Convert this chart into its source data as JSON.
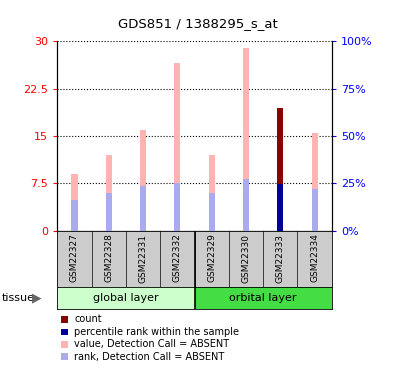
{
  "title": "GDS851 / 1388295_s_at",
  "samples": [
    "GSM22327",
    "GSM22328",
    "GSM22331",
    "GSM22332",
    "GSM22329",
    "GSM22330",
    "GSM22333",
    "GSM22334"
  ],
  "group_labels": [
    "global layer",
    "orbital layer"
  ],
  "value_bars": [
    9.0,
    12.0,
    16.0,
    26.5,
    12.0,
    29.0,
    19.5,
    15.5
  ],
  "rank_bars_pct": [
    16.0,
    20.0,
    23.5,
    25.0,
    20.0,
    27.0,
    24.5,
    22.0
  ],
  "count_index": 6,
  "count_value": 19.5,
  "count_rank_pct": 24.5,
  "ylim_left": [
    0,
    30
  ],
  "ylim_right": [
    0,
    100
  ],
  "yticks_left": [
    0,
    7.5,
    15,
    22.5,
    30
  ],
  "yticks_right": [
    0,
    25,
    50,
    75,
    100
  ],
  "ytick_labels_left": [
    "0",
    "7.5",
    "15",
    "22.5",
    "30"
  ],
  "ytick_labels_right": [
    "0%",
    "25%",
    "50%",
    "75%",
    "100%"
  ],
  "value_color": "#FFB3B3",
  "rank_color": "#AAAAEE",
  "count_color": "#8B0000",
  "count_rank_color": "#000099",
  "global_layer_color": "#CCFFCC",
  "orbital_layer_color": "#44DD44",
  "gray_label_color": "#CCCCCC",
  "legend_items": [
    "count",
    "percentile rank within the sample",
    "value, Detection Call = ABSENT",
    "rank, Detection Call = ABSENT"
  ],
  "legend_colors": [
    "#8B0000",
    "#000099",
    "#FFB3B3",
    "#AAAAEE"
  ]
}
